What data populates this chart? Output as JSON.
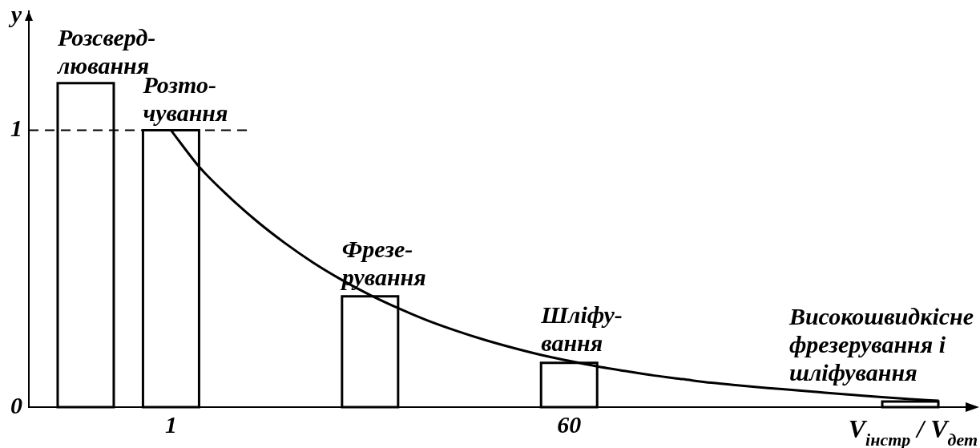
{
  "chart_data": {
    "type": "bar",
    "xlabel": "V$_{інстр}$ / V$_{дет}$",
    "ylabel": "y",
    "categories": [
      null,
      null,
      null,
      null,
      null,
      "1",
      null,
      null,
      null,
      null,
      null,
      null,
      null,
      null,
      null,
      null,
      null,
      null,
      null,
      "60",
      null,
      null,
      null,
      null,
      null,
      null,
      null,
      null,
      null,
      null,
      null,
      null,
      null,
      null
    ],
    "series": [
      {
        "name": "Розсверд-\nлювання",
        "color": "#000000",
        "values": [
          null,
          null,
          1.17,
          null,
          null,
          null,
          null,
          null,
          null,
          null,
          null,
          null,
          null,
          null,
          null,
          null,
          null,
          null,
          null,
          null,
          null,
          null,
          null,
          null,
          null,
          null,
          null,
          null,
          null,
          null,
          null,
          null,
          null,
          null
        ]
      },
      {
        "name": "Розто-\nчування",
        "color": "#000000",
        "values": [
          null,
          null,
          null,
          null,
          null,
          1,
          null,
          null,
          null,
          null,
          null,
          null,
          null,
          null,
          null,
          null,
          null,
          null,
          null,
          null,
          null,
          null,
          null,
          null,
          null,
          null,
          null,
          null,
          null,
          null,
          null,
          null,
          null,
          null
        ]
      },
      {
        "name": "Фрезе-\nрування",
        "color": "#000000",
        "values": [
          null,
          null,
          null,
          null,
          null,
          null,
          null,
          null,
          null,
          null,
          null,
          null,
          0.4,
          null,
          null,
          null,
          null,
          null,
          null,
          null,
          null,
          null,
          null,
          null,
          null,
          null,
          null,
          null,
          null,
          null,
          null,
          null,
          null,
          null
        ]
      },
      {
        "name": "Шліфу-\nвання",
        "color": "#000000",
        "values": [
          null,
          null,
          null,
          null,
          null,
          null,
          null,
          null,
          null,
          null,
          null,
          null,
          null,
          null,
          null,
          null,
          null,
          null,
          null,
          0.16,
          null,
          null,
          null,
          null,
          null,
          null,
          null,
          null,
          null,
          null,
          null,
          null,
          null,
          null
        ]
      },
      {
        "name": "Високошвидкісне\nфрезерування і\nшліфування",
        "color": "#000000",
        "values": [
          null,
          null,
          null,
          null,
          null,
          null,
          null,
          null,
          null,
          null,
          null,
          null,
          null,
          null,
          null,
          null,
          null,
          null,
          null,
          null,
          null,
          null,
          null,
          null,
          null,
          null,
          null,
          null,
          null,
          null,
          null,
          0.02,
          null,
          null
        ]
      },
      {
        "type": "line",
        "color": "#000000",
        "values": [
          null,
          null,
          null,
          null,
          null,
          1,
          0.867,
          0.764,
          0.673,
          0.593,
          0.522,
          0.46,
          0.405,
          0.357,
          0.314,
          0.277,
          0.244,
          0.215,
          0.189,
          0.167,
          0.147,
          0.13,
          0.114,
          0.101,
          0.088,
          0.078,
          0.069,
          0.061,
          0.052,
          0.044,
          0.036,
          0.029,
          0.023,
          null
        ]
      }
    ],
    "ylim": [
      0,
      1.43
    ],
    "yticks": [
      0,
      1
    ],
    "ref_lines": [
      {
        "axis": "y",
        "value": 1,
        "color": "#000000",
        "line_style": "dashed"
      }
    ],
    "grid": false,
    "legend": false,
    "marker": "none"
  }
}
